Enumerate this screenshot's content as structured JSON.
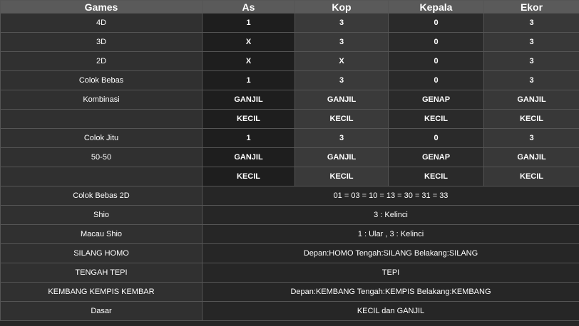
{
  "header": [
    "Games",
    "As",
    "Kop",
    "Kepala",
    "Ekor"
  ],
  "grid_rows": [
    {
      "game": "4D",
      "as": "1",
      "kop": "3",
      "kepala": "0",
      "ekor": "3"
    },
    {
      "game": "3D",
      "as": "X",
      "kop": "3",
      "kepala": "0",
      "ekor": "3"
    },
    {
      "game": "2D",
      "as": "X",
      "kop": "X",
      "kepala": "0",
      "ekor": "3"
    },
    {
      "game": "Colok Bebas",
      "as": "1",
      "kop": "3",
      "kepala": "0",
      "ekor": "3"
    },
    {
      "game": "Kombinasi",
      "as": "GANJIL",
      "kop": "GANJIL",
      "kepala": "GENAP",
      "ekor": "GANJIL"
    },
    {
      "game": "",
      "as": "KECIL",
      "kop": "KECIL",
      "kepala": "KECIL",
      "ekor": "KECIL"
    },
    {
      "game": "Colok Jitu",
      "as": "1",
      "kop": "3",
      "kepala": "0",
      "ekor": "3"
    },
    {
      "game": "50-50",
      "as": "GANJIL",
      "kop": "GANJIL",
      "kepala": "GENAP",
      "ekor": "GANJIL"
    },
    {
      "game": "",
      "as": "KECIL",
      "kop": "KECIL",
      "kepala": "KECIL",
      "ekor": "KECIL"
    }
  ],
  "span_rows": [
    {
      "game": "Colok Bebas 2D",
      "value": "01 = 03 = 10 = 13 = 30 = 31 = 33"
    },
    {
      "game": "Shio",
      "value": "3 : Kelinci"
    },
    {
      "game": "Macau Shio",
      "value": "1 : Ular , 3 : Kelinci"
    },
    {
      "game": "SILANG HOMO",
      "value": "Depan:HOMO Tengah:SILANG Belakang:SILANG"
    },
    {
      "game": "TENGAH TEPI",
      "value": "TEPI"
    },
    {
      "game": "KEMBANG KEMPIS KEMBAR",
      "value": "Depan:KEMBANG Tengah:KEMPIS Belakang:KEMBANG"
    },
    {
      "game": "Dasar",
      "value": "KECIL dan GANJIL"
    }
  ]
}
